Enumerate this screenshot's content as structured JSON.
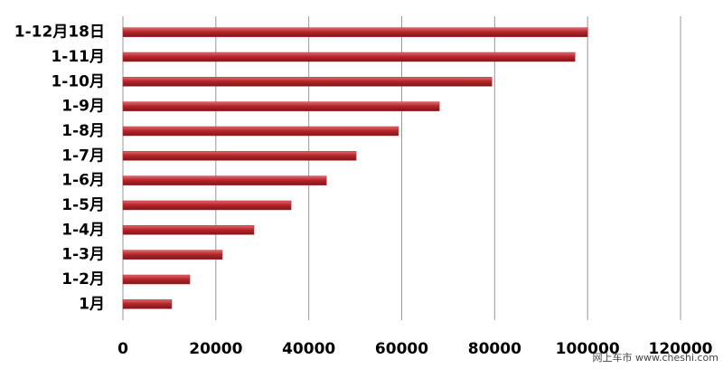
{
  "chart_data": {
    "type": "barh",
    "categories": [
      "1-12月18日",
      "1-11月",
      "1-10月",
      "1-9月",
      "1-8月",
      "1-7月",
      "1-6月",
      "1-5月",
      "1-4月",
      "1-3月",
      "1-2月",
      "1月"
    ],
    "values": [
      100000,
      97300,
      79400,
      68100,
      59300,
      50200,
      43800,
      36200,
      28200,
      21400,
      14400,
      10500
    ],
    "color": "#b7262c",
    "xlim": [
      0,
      120000
    ],
    "xticks": [
      0,
      20000,
      40000,
      60000,
      80000,
      100000,
      120000
    ],
    "grid": true,
    "watermark": "网上车市 www.cheshi.com"
  }
}
